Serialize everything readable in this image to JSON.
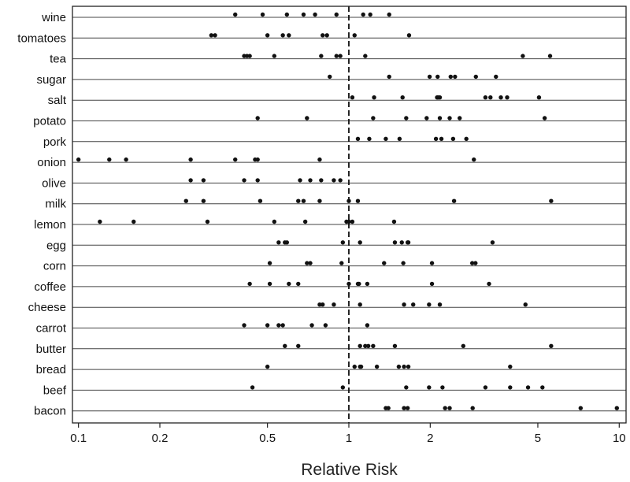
{
  "chart_data": {
    "type": "scatter",
    "xscale": "log",
    "xlim": [
      0.095,
      10.6
    ],
    "xlabel": "Relative Risk",
    "x_ticks": [
      0.1,
      0.2,
      0.5,
      1,
      2,
      5,
      10
    ],
    "x_tick_labels": [
      "0.1",
      "0.2",
      "0.5",
      "1",
      "2",
      "5",
      "10"
    ],
    "reference_line": 1,
    "categories": [
      "wine",
      "tomatoes",
      "tea",
      "sugar",
      "salt",
      "potato",
      "pork",
      "onion",
      "olive",
      "milk",
      "lemon",
      "egg",
      "corn",
      "coffee",
      "cheese",
      "carrot",
      "butter",
      "bread",
      "beef",
      "bacon"
    ],
    "series": [
      {
        "name": "wine",
        "values": [
          0.38,
          0.48,
          0.59,
          0.75,
          0.68,
          0.9,
          1.13,
          1.2,
          1.41
        ]
      },
      {
        "name": "tomatoes",
        "values": [
          0.31,
          0.32,
          0.5,
          0.57,
          0.6,
          0.8,
          0.83,
          1.05,
          1.67
        ]
      },
      {
        "name": "tea",
        "values": [
          0.41,
          0.42,
          0.43,
          0.53,
          0.79,
          0.9,
          0.93,
          1.15,
          4.4,
          5.55
        ]
      },
      {
        "name": "sugar",
        "values": [
          0.85,
          1.41,
          1.99,
          2.13,
          2.38,
          2.47,
          2.95,
          3.5
        ]
      },
      {
        "name": "salt",
        "values": [
          1.03,
          1.24,
          1.58,
          2.12,
          2.17,
          2.14,
          3.2,
          3.34,
          3.65,
          3.85,
          5.05
        ]
      },
      {
        "name": "potato",
        "values": [
          0.46,
          0.7,
          1.23,
          1.63,
          1.94,
          2.17,
          2.36,
          2.57,
          5.3
        ]
      },
      {
        "name": "pork",
        "values": [
          1.08,
          1.19,
          1.37,
          1.54,
          2.1,
          2.2,
          2.43,
          2.72
        ]
      },
      {
        "name": "onion",
        "values": [
          0.1,
          0.13,
          0.15,
          0.26,
          0.38,
          0.45,
          0.46,
          0.78,
          2.9
        ]
      },
      {
        "name": "olive",
        "values": [
          0.26,
          0.29,
          0.41,
          0.46,
          0.66,
          0.72,
          0.79,
          0.88,
          0.93
        ]
      },
      {
        "name": "milk",
        "values": [
          0.25,
          0.29,
          0.47,
          0.65,
          0.68,
          0.78,
          1.0,
          1.08,
          2.45,
          5.6
        ]
      },
      {
        "name": "lemon",
        "values": [
          0.12,
          0.16,
          0.3,
          0.53,
          0.69,
          0.98,
          1.0,
          1.03,
          1.47
        ]
      },
      {
        "name": "egg",
        "values": [
          0.55,
          0.58,
          0.59,
          0.95,
          1.1,
          1.48,
          1.57,
          1.65,
          1.66,
          3.4
        ]
      },
      {
        "name": "corn",
        "values": [
          0.51,
          0.7,
          0.72,
          0.94,
          1.35,
          1.59,
          2.03,
          2.86,
          2.94
        ]
      },
      {
        "name": "coffee",
        "values": [
          0.43,
          0.51,
          0.6,
          0.65,
          1.0,
          1.08,
          1.09,
          1.17,
          2.03,
          3.3
        ]
      },
      {
        "name": "cheese",
        "values": [
          0.78,
          0.8,
          0.88,
          1.1,
          1.6,
          1.73,
          1.98,
          2.17,
          4.5
        ]
      },
      {
        "name": "carrot",
        "values": [
          0.41,
          0.5,
          0.55,
          0.57,
          0.73,
          0.82,
          1.17
        ]
      },
      {
        "name": "butter",
        "values": [
          0.58,
          0.65,
          1.1,
          1.15,
          1.18,
          1.23,
          1.48,
          2.65,
          5.6
        ]
      },
      {
        "name": "bread",
        "values": [
          0.5,
          1.05,
          1.1,
          1.11,
          1.27,
          1.53,
          1.6,
          1.66,
          3.95
        ]
      },
      {
        "name": "beef",
        "values": [
          0.44,
          0.95,
          1.63,
          1.98,
          2.22,
          3.2,
          3.95,
          4.6,
          5.2
        ]
      },
      {
        "name": "bacon",
        "values": [
          1.37,
          1.4,
          1.6,
          1.65,
          2.27,
          2.36,
          2.87,
          7.2,
          9.8
        ]
      }
    ]
  }
}
